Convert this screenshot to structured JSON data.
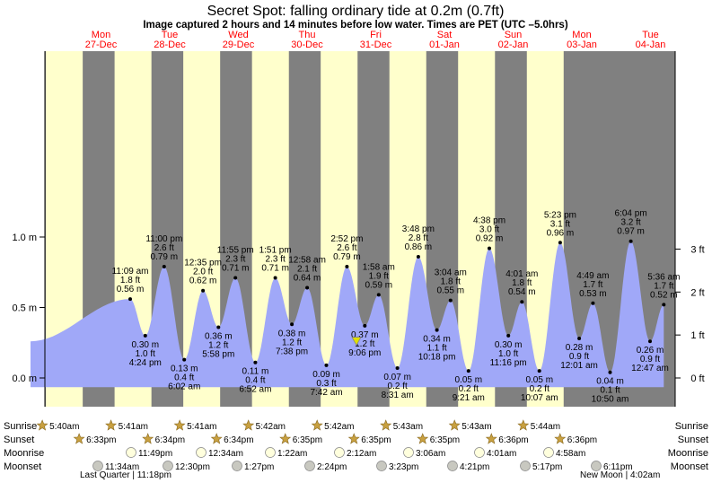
{
  "title": "Secret Spot: falling  ordinary tide at 0.2m (0.7ft)",
  "subtitle": "Image captured 2 hours and 14 minutes before low water. Times are PET (UTC –5.0hrs)",
  "colors": {
    "night": "#808080",
    "day": "#ffffcc",
    "tide": "#a0a8f8",
    "day_label": "#ff0000",
    "marker": "#e0e000"
  },
  "chart_data": {
    "type": "area",
    "title": "Secret Spot: falling  ordinary tide at 0.2m (0.7ft)",
    "ylim_m": [
      -0.08,
      1.17
    ],
    "y_ticks_m": [
      {
        "value": 0.0,
        "label": "0.0 m"
      },
      {
        "value": 0.5,
        "label": "0.5 m"
      },
      {
        "value": 1.0,
        "label": "1.0 m"
      }
    ],
    "y_ticks_ft": [
      {
        "value_m": 0.0,
        "label": "0 ft"
      },
      {
        "value_m": 0.3048,
        "label": "1 ft"
      },
      {
        "value_m": 0.6096,
        "label": "2 ft"
      },
      {
        "value_m": 0.9144,
        "label": "3 ft"
      }
    ],
    "days": [
      {
        "dow": "Mon",
        "date": "27-Dec"
      },
      {
        "dow": "Tue",
        "date": "28-Dec"
      },
      {
        "dow": "Wed",
        "date": "29-Dec"
      },
      {
        "dow": "Thu",
        "date": "30-Dec"
      },
      {
        "dow": "Fri",
        "date": "31-Dec"
      },
      {
        "dow": "Sat",
        "date": "01-Jan"
      },
      {
        "dow": "Sun",
        "date": "02-Jan"
      },
      {
        "dow": "Mon",
        "date": "03-Jan"
      },
      {
        "dow": "Tue",
        "date": "04-Jan"
      }
    ],
    "tides": [
      {
        "type": "high",
        "time": "11:09 am",
        "ft": "1.8 ft",
        "m": 0.56,
        "m_label": "0.56 m"
      },
      {
        "type": "low",
        "time": "4:24 pm",
        "ft": "1.0 ft",
        "m": 0.3,
        "m_label": "0.30 m"
      },
      {
        "type": "high",
        "time": "11:00 pm",
        "ft": "2.6 ft",
        "m": 0.79,
        "m_label": "0.79 m"
      },
      {
        "type": "low",
        "time": "6:02 am",
        "ft": "0.4 ft",
        "m": 0.13,
        "m_label": "0.13 m"
      },
      {
        "type": "high",
        "time": "12:35 pm",
        "ft": "2.0 ft",
        "m": 0.62,
        "m_label": "0.62 m"
      },
      {
        "type": "low",
        "time": "5:58 pm",
        "ft": "1.2 ft",
        "m": 0.36,
        "m_label": "0.36 m"
      },
      {
        "type": "high",
        "time": "11:55 pm",
        "ft": "2.3 ft",
        "m": 0.71,
        "m_label": "0.71 m"
      },
      {
        "type": "low",
        "time": "6:52 am",
        "ft": "0.4 ft",
        "m": 0.11,
        "m_label": "0.11 m"
      },
      {
        "type": "high",
        "time": "1:51 pm",
        "ft": "2.3 ft",
        "m": 0.71,
        "m_label": "0.71 m"
      },
      {
        "type": "low",
        "time": "7:38 pm",
        "ft": "1.2 ft",
        "m": 0.38,
        "m_label": "0.38 m"
      },
      {
        "type": "high",
        "time": "12:58 am",
        "ft": "2.1 ft",
        "m": 0.64,
        "m_label": "0.64 m"
      },
      {
        "type": "low",
        "time": "7:42 am",
        "ft": "0.3 ft",
        "m": 0.09,
        "m_label": "0.09 m"
      },
      {
        "type": "high",
        "time": "2:52 pm",
        "ft": "2.6 ft",
        "m": 0.79,
        "m_label": "0.79 m"
      },
      {
        "type": "low",
        "time": "9:06 pm",
        "ft": "1.2 ft",
        "m": 0.37,
        "m_label": "0.37 m"
      },
      {
        "type": "high",
        "time": "1:58 am",
        "ft": "1.9 ft",
        "m": 0.59,
        "m_label": "0.59 m"
      },
      {
        "type": "low",
        "time": "8:31 am",
        "ft": "0.2 ft",
        "m": 0.07,
        "m_label": "0.07 m"
      },
      {
        "type": "high",
        "time": "3:48 pm",
        "ft": "2.8 ft",
        "m": 0.86,
        "m_label": "0.86 m"
      },
      {
        "type": "low",
        "time": "10:18 pm",
        "ft": "1.1 ft",
        "m": 0.34,
        "m_label": "0.34 m"
      },
      {
        "type": "high",
        "time": "3:04 am",
        "ft": "1.8 ft",
        "m": 0.55,
        "m_label": "0.55 m"
      },
      {
        "type": "low",
        "time": "9:21 am",
        "ft": "0.2 ft",
        "m": 0.05,
        "m_label": "0.05 m"
      },
      {
        "type": "high",
        "time": "4:38 pm",
        "ft": "3.0 ft",
        "m": 0.92,
        "m_label": "0.92 m"
      },
      {
        "type": "low",
        "time": "11:16 pm",
        "ft": "1.0 ft",
        "m": 0.3,
        "m_label": "0.30 m"
      },
      {
        "type": "high",
        "time": "4:01 am",
        "ft": "1.8 ft",
        "m": 0.54,
        "m_label": "0.54 m"
      },
      {
        "type": "low",
        "time": "10:07 am",
        "ft": "0.2 ft",
        "m": 0.05,
        "m_label": "0.05 m"
      },
      {
        "type": "high",
        "time": "5:23 pm",
        "ft": "3.1 ft",
        "m": 0.96,
        "m_label": "0.96 m"
      },
      {
        "type": "low",
        "time": "12:01 am",
        "ft": "0.9 ft",
        "m": 0.28,
        "m_label": "0.28 m"
      },
      {
        "type": "high",
        "time": "4:49 am",
        "ft": "1.7 ft",
        "m": 0.53,
        "m_label": "0.53 m"
      },
      {
        "type": "low",
        "time": "10:50 am",
        "ft": "0.1 ft",
        "m": 0.04,
        "m_label": "0.04 m"
      },
      {
        "type": "high",
        "time": "6:04 pm",
        "ft": "3.2 ft",
        "m": 0.97,
        "m_label": "0.97 m"
      },
      {
        "type": "low",
        "time": "12:47 am",
        "ft": "0.9 ft",
        "m": 0.26,
        "m_label": "0.26 m"
      },
      {
        "type": "high",
        "time": "5:36 am",
        "ft": "1.7 ft",
        "m": 0.52,
        "m_label": "0.52 m"
      }
    ],
    "current_marker_m": 0.2
  },
  "rows": {
    "labels": [
      "Sunrise",
      "Sunset",
      "Moonrise",
      "Moonset"
    ],
    "sunrise": [
      "5:40am",
      "5:41am",
      "5:41am",
      "5:42am",
      "5:42am",
      "5:43am",
      "5:43am",
      "5:44am"
    ],
    "sunset": [
      "6:33pm",
      "6:34pm",
      "6:34pm",
      "6:35pm",
      "6:35pm",
      "6:35pm",
      "6:36pm",
      "6:36pm"
    ],
    "moonrise": [
      "11:49pm",
      "12:34am",
      "1:22am",
      "2:12am",
      "3:06am",
      "4:01am",
      "4:58am"
    ],
    "moonset": [
      "11:34am",
      "12:30pm",
      "1:27pm",
      "2:24pm",
      "3:23pm",
      "4:21pm",
      "5:17pm",
      "6:11pm"
    ],
    "phase_left": "Last Quarter | 11:18pm",
    "phase_right": "New Moon | 4:02am"
  }
}
